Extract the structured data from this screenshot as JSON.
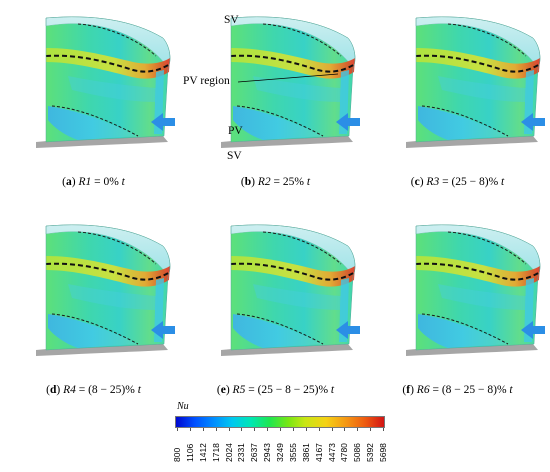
{
  "panels": [
    {
      "id": "a",
      "letter": "a",
      "var": "R1",
      "eq": " = 0% ",
      "unit": "t"
    },
    {
      "id": "b",
      "letter": "b",
      "var": "R2",
      "eq": " = 25% ",
      "unit": "t"
    },
    {
      "id": "c",
      "letter": "c",
      "var": "R3",
      "eq": " = (25 − 8)% ",
      "unit": "t"
    },
    {
      "id": "d",
      "letter": "d",
      "var": "R4",
      "eq": " = (8 − 25)% ",
      "unit": "t"
    },
    {
      "id": "e",
      "letter": "e",
      "var": "R5",
      "eq": " = (25 − 8 − 25)% ",
      "unit": "t"
    },
    {
      "id": "f",
      "letter": "f",
      "var": "R6",
      "eq": " = (8 − 25 − 8)% ",
      "unit": "t"
    }
  ],
  "annotations": {
    "sv_top": "SV",
    "pv_region": "PV region",
    "pv": "PV",
    "sv_bottom": "SV"
  },
  "colorbar": {
    "title": "Nu",
    "ticks": [
      "800",
      "1106",
      "1412",
      "1718",
      "2024",
      "2331",
      "2637",
      "2943",
      "3249",
      "3555",
      "3861",
      "4167",
      "4473",
      "4780",
      "5086",
      "5392",
      "5698"
    ]
  },
  "colors": {
    "flow_arrow": "#2b8ee6",
    "band_hot": "#e0321e",
    "base_floor": "#a6a6a6"
  }
}
